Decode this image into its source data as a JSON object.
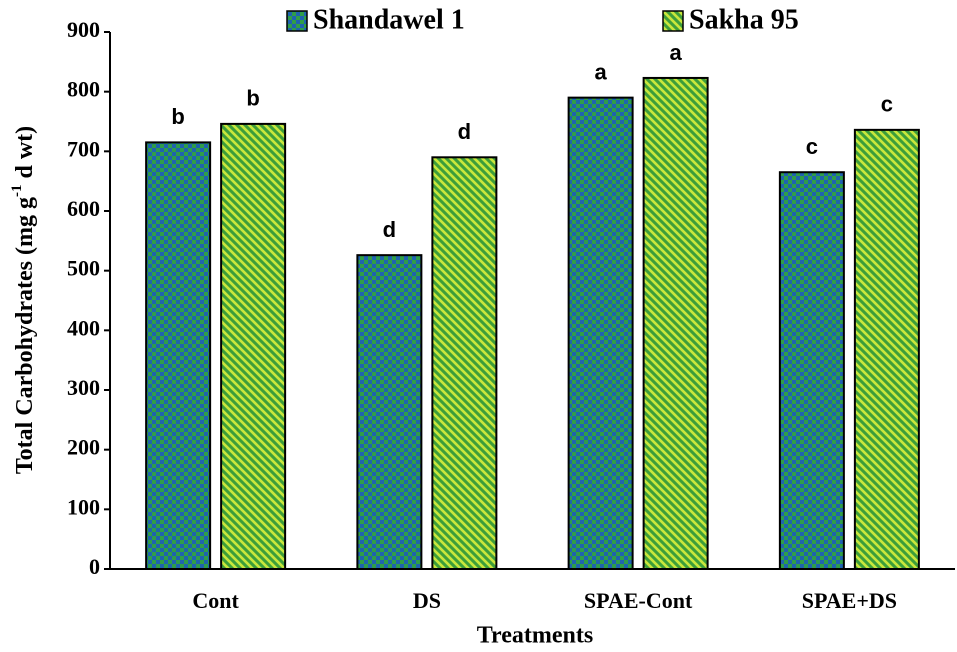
{
  "chart_data": {
    "type": "bar",
    "categories": [
      "Cont",
      "DS",
      "SPAE-Cont",
      "SPAE+DS"
    ],
    "series": [
      {
        "name": "Shandawel 1",
        "color": "#1f63b0",
        "pattern": "checker",
        "pattern_color": "#2f9e48",
        "values": [
          715,
          526,
          790,
          665
        ],
        "letters": [
          "b",
          "d",
          "a",
          "c"
        ]
      },
      {
        "name": "Sakha 95",
        "color": "#c8e63c",
        "pattern": "stripes",
        "pattern_color": "#3d9e3a",
        "values": [
          746,
          690,
          823,
          736
        ],
        "letters": [
          "b",
          "d",
          "a",
          "c"
        ]
      }
    ],
    "ylabel_parts": [
      "Total  Carbohydrates (mg g",
      "-1",
      " d wt)"
    ],
    "xlabel": "Treatments",
    "ylim": [
      0,
      900
    ],
    "yticks": [
      0,
      100,
      200,
      300,
      400,
      500,
      600,
      700,
      800,
      900
    ],
    "legend": "top"
  }
}
